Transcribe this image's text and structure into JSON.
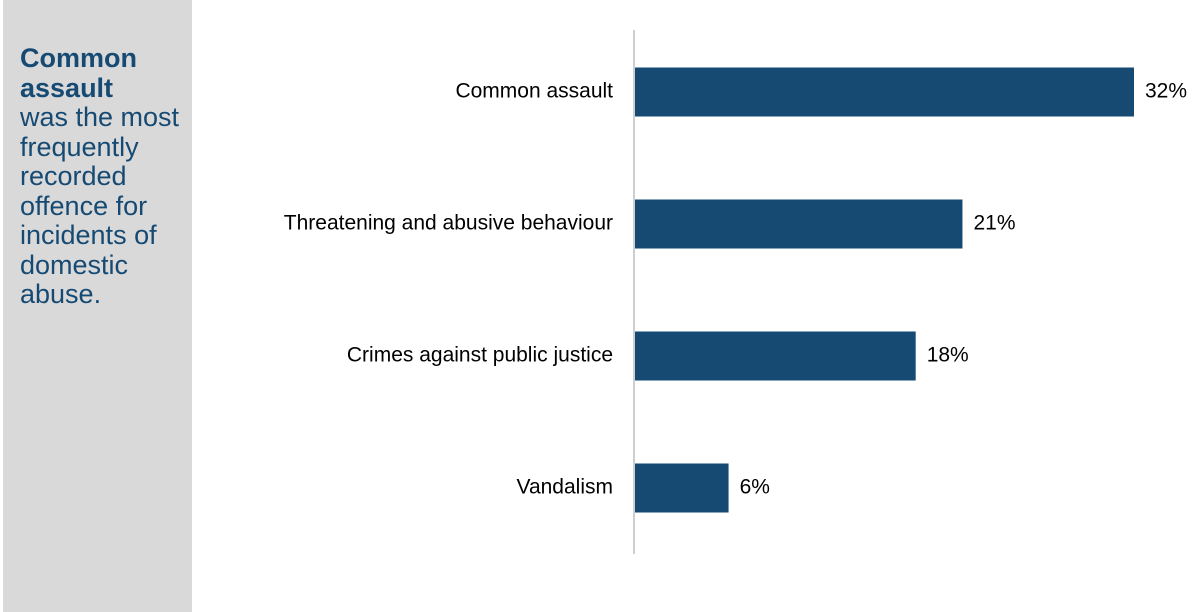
{
  "sidebar": {
    "highlight": "Common assault",
    "text": "was the most frequently recorded offence for incidents of domestic abuse."
  },
  "colors": {
    "bar": "#164a73",
    "sidebar_bg": "#d9d9d9",
    "sidebar_text": "#164a73",
    "axis": "#bfbfbf"
  },
  "chart_data": {
    "type": "bar",
    "orientation": "horizontal",
    "categories": [
      "Common assault",
      "Threatening and abusive behaviour",
      "Crimes against public justice",
      "Vandalism"
    ],
    "values": [
      32,
      21,
      18,
      6
    ],
    "value_labels": [
      "32%",
      "21%",
      "18%",
      "6%"
    ],
    "unit": "%",
    "xlim": [
      0,
      32
    ],
    "grid": false,
    "legend": "none"
  }
}
